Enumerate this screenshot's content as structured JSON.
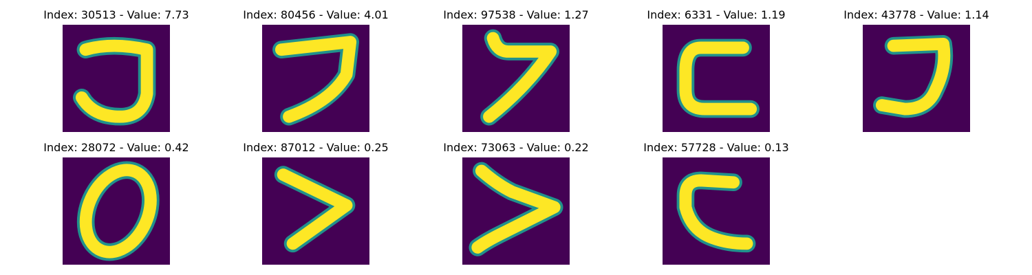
{
  "colors": {
    "background": "#440154",
    "stroke_edge": "#21918c",
    "stroke_core": "#fde725"
  },
  "panels": [
    {
      "index": "30513",
      "value": "7.73",
      "title": "Index: 30513 - Value: 7.73",
      "glyph": "hook-digit"
    },
    {
      "index": "80456",
      "value": "4.01",
      "title": "Index: 80456 - Value: 4.01",
      "glyph": "seven-like-digit"
    },
    {
      "index": "97538",
      "value": "1.27",
      "title": "Index: 97538 - Value: 1.27",
      "glyph": "seven-like-digit"
    },
    {
      "index": "6331",
      "value": "1.19",
      "title": "Index: 6331 - Value: 1.19",
      "glyph": "c-shape-digit"
    },
    {
      "index": "43778",
      "value": "1.14",
      "title": "Index: 43778 - Value: 1.14",
      "glyph": "hook-digit"
    },
    {
      "index": "28072",
      "value": "0.42",
      "title": "Index: 28072 - Value: 0.42",
      "glyph": "zero-digit"
    },
    {
      "index": "87012",
      "value": "0.25",
      "title": "Index: 87012 - Value: 0.25",
      "glyph": "chevron-digit"
    },
    {
      "index": "73063",
      "value": "0.22",
      "title": "Index: 73063 - Value: 0.22",
      "glyph": "chevron-digit"
    },
    {
      "index": "57728",
      "value": "0.13",
      "title": "Index: 57728 - Value: 0.13",
      "glyph": "c-shape-digit"
    }
  ]
}
